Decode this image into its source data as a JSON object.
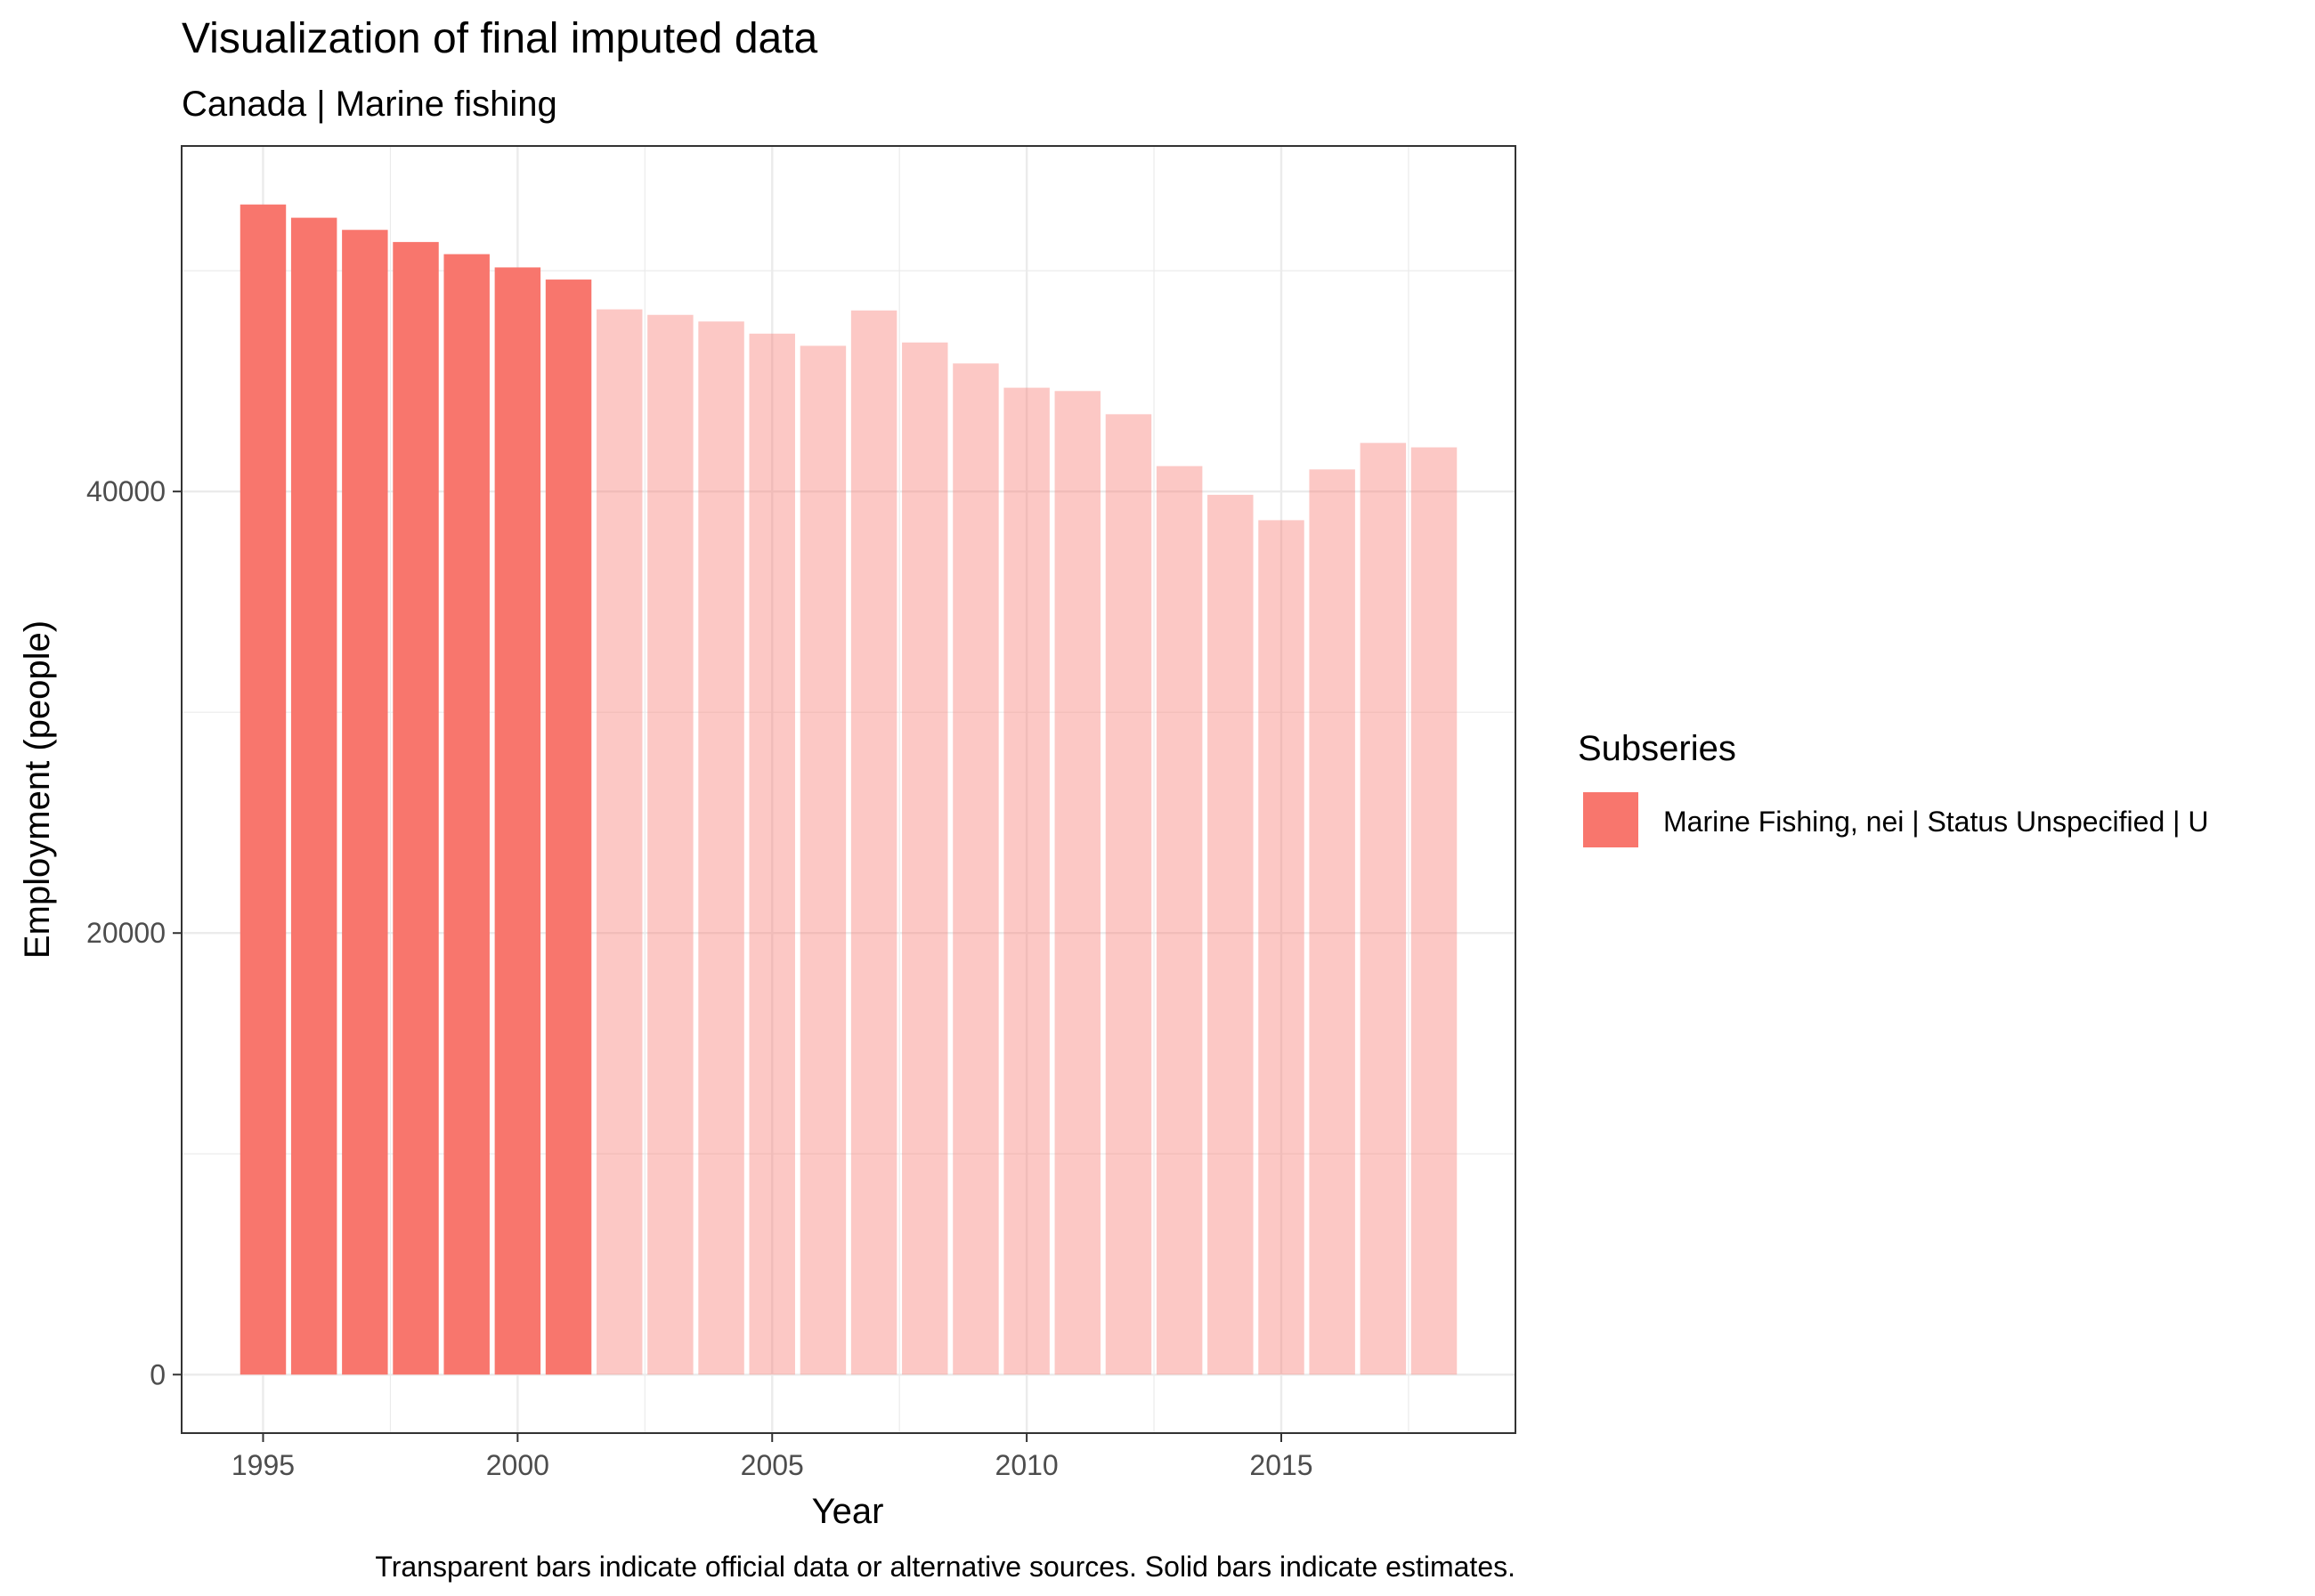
{
  "chart_data": {
    "type": "bar",
    "title": "Visualization of final imputed data",
    "subtitle": "Canada | Marine fishing",
    "xlabel": "Year",
    "ylabel": "Employment (people)",
    "caption": "Transparent bars indicate official data or alternative sources. Solid bars indicate estimates.",
    "xlim": [
      1993.4,
      2019.6
    ],
    "ylim": [
      -2650,
      55650
    ],
    "x_ticks": [
      1995,
      2000,
      2005,
      2010,
      2015
    ],
    "y_ticks": [
      0,
      20000,
      40000
    ],
    "grid": true,
    "legend": {
      "title": "Subseries",
      "position": "right",
      "entries": [
        {
          "label": "Marine Fishing, nei | Status Unspecified | U",
          "color": "#F8766D"
        }
      ]
    },
    "colors": {
      "series": "#F8766D",
      "panel_border": "#333333",
      "grid": "#ebebeb"
    },
    "series": [
      {
        "name": "Marine Fishing, nei | Status Unspecified | U",
        "color": "#F8766D",
        "points": [
          {
            "year": 1995,
            "value": 53000,
            "estimate": true
          },
          {
            "year": 1996,
            "value": 52400,
            "estimate": true
          },
          {
            "year": 1997,
            "value": 51850,
            "estimate": true
          },
          {
            "year": 1998,
            "value": 51300,
            "estimate": true
          },
          {
            "year": 1999,
            "value": 50750,
            "estimate": true
          },
          {
            "year": 2000,
            "value": 50150,
            "estimate": true
          },
          {
            "year": 2001,
            "value": 49600,
            "estimate": true
          },
          {
            "year": 2002,
            "value": 48250,
            "estimate": false
          },
          {
            "year": 2003,
            "value": 48000,
            "estimate": false
          },
          {
            "year": 2004,
            "value": 47700,
            "estimate": false
          },
          {
            "year": 2005,
            "value": 47150,
            "estimate": false
          },
          {
            "year": 2006,
            "value": 46600,
            "estimate": false
          },
          {
            "year": 2007,
            "value": 48200,
            "estimate": false
          },
          {
            "year": 2008,
            "value": 46750,
            "estimate": false
          },
          {
            "year": 2009,
            "value": 45800,
            "estimate": false
          },
          {
            "year": 2010,
            "value": 44700,
            "estimate": false
          },
          {
            "year": 2011,
            "value": 44550,
            "estimate": false
          },
          {
            "year": 2012,
            "value": 43500,
            "estimate": false
          },
          {
            "year": 2013,
            "value": 41150,
            "estimate": false
          },
          {
            "year": 2014,
            "value": 39850,
            "estimate": false
          },
          {
            "year": 2015,
            "value": 38700,
            "estimate": false
          },
          {
            "year": 2016,
            "value": 41000,
            "estimate": false
          },
          {
            "year": 2017,
            "value": 42200,
            "estimate": false
          },
          {
            "year": 2018,
            "value": 42000,
            "estimate": false
          }
        ]
      }
    ]
  }
}
